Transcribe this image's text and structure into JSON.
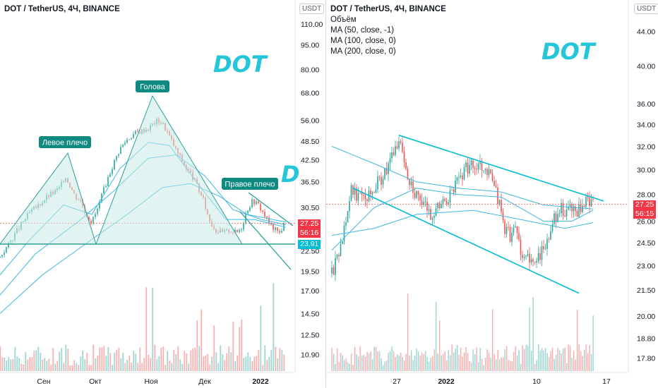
{
  "colors": {
    "up": "#26a69a",
    "down": "#ef5350",
    "pattern_line": "#2aa198",
    "pattern_fill": "#c9ebe5",
    "ma": "#3db8e0",
    "label_bg": "#0f8a80",
    "current_price_bg": "#f23645",
    "support_price_bg": "#00bcd4",
    "watermark": "#26c6da"
  },
  "left": {
    "legend": {
      "symbol": "DOT / TetherUS, 4Ч, BINANCE"
    },
    "currency_badge": "USDT",
    "watermark": "DOT",
    "watermark_partial": "D",
    "labels": {
      "left_shoulder": "Левое плечо",
      "head": "Голова",
      "right_shoulder": "Правое плечо"
    },
    "price_tags": {
      "current": "27.25",
      "countdown": "56:16",
      "support": "23.91"
    }
  },
  "right": {
    "legend": {
      "symbol": "DOT / TetherUS, 4Ч, BINANCE",
      "volume": "Объём",
      "ma1": "MA (50, close, -1)",
      "ma2": "MA (100, close, 0)",
      "ma3": "MA (200, close, 0)"
    },
    "currency_badge": "USDT",
    "watermark": "DOT",
    "price_tags": {
      "current": "27.25",
      "countdown": "56:15"
    }
  },
  "chart_data": [
    {
      "type": "candlestick",
      "symbol": "DOT / TetherUS",
      "interval": "4Ч",
      "exchange": "BINANCE",
      "y_ticks": [
        "110.00",
        "95.00",
        "80.00",
        "68.00",
        "56.00",
        "48.50",
        "42.50",
        "36.50",
        "30.50",
        "22.50",
        "19.50",
        "17.00",
        "14.50",
        "12.50",
        "10.90"
      ],
      "x_ticks": [
        "Сен",
        "Окт",
        "Ноя",
        "Дек",
        "2022"
      ],
      "ylim": [
        9.6,
        130
      ],
      "log_scale": true,
      "price_path": [
        [
          0,
          21.5
        ],
        [
          12,
          23.5
        ],
        [
          25,
          26
        ],
        [
          40,
          29
        ],
        [
          55,
          31
        ],
        [
          68,
          33
        ],
        [
          78,
          34
        ],
        [
          85,
          35
        ],
        [
          92,
          38
        ],
        [
          98,
          36
        ],
        [
          106,
          33
        ],
        [
          114,
          32
        ],
        [
          122,
          29
        ],
        [
          130,
          27.5
        ],
        [
          138,
          30
        ],
        [
          146,
          34
        ],
        [
          154,
          38
        ],
        [
          162,
          42
        ],
        [
          170,
          46
        ],
        [
          180,
          49
        ],
        [
          190,
          51
        ],
        [
          200,
          52
        ],
        [
          210,
          53
        ],
        [
          218,
          55
        ],
        [
          225,
          56
        ],
        [
          232,
          54
        ],
        [
          240,
          50
        ],
        [
          248,
          46
        ],
        [
          256,
          43
        ],
        [
          264,
          40
        ],
        [
          272,
          38
        ],
        [
          280,
          35
        ],
        [
          288,
          32
        ],
        [
          296,
          28
        ],
        [
          305,
          26
        ],
        [
          315,
          25.5
        ],
        [
          325,
          26
        ],
        [
          335,
          25.5
        ],
        [
          342,
          26.5
        ],
        [
          350,
          30
        ],
        [
          358,
          32
        ],
        [
          366,
          31
        ],
        [
          374,
          29
        ],
        [
          382,
          27
        ],
        [
          390,
          26
        ],
        [
          396,
          25.5
        ],
        [
          402,
          27
        ]
      ],
      "series": [
        {
          "name": "MA (50, close, -1)",
          "values": [
            [
              0,
              19
            ],
            [
              40,
              24
            ],
            [
              90,
              31
            ],
            [
              130,
              29
            ],
            [
              170,
              40
            ],
            [
              210,
              48
            ],
            [
              240,
              47
            ],
            [
              280,
              36
            ],
            [
              320,
              28
            ],
            [
              360,
              28
            ],
            [
              405,
              26.5
            ]
          ]
        },
        {
          "name": "MA (100, close, 0)",
          "values": [
            [
              0,
              16.5
            ],
            [
              50,
              22
            ],
            [
              110,
              27.5
            ],
            [
              160,
              34
            ],
            [
              210,
              43
            ],
            [
              250,
              44
            ],
            [
              290,
              38
            ],
            [
              330,
              30
            ],
            [
              370,
              28
            ],
            [
              405,
              27
            ]
          ]
        },
        {
          "name": "MA (200, close, 0)",
          "values": [
            [
              0,
              14.5
            ],
            [
              60,
              19
            ],
            [
              120,
              23.5
            ],
            [
              180,
              29
            ],
            [
              230,
              35
            ],
            [
              270,
              36
            ],
            [
              310,
              33
            ],
            [
              350,
              29
            ],
            [
              405,
              27.5
            ]
          ]
        }
      ],
      "annotations": [
        "Левое плечо",
        "Голова",
        "Правое плечо"
      ],
      "neckline": 23.91,
      "current_price": 27.25,
      "countdown": "56:16"
    },
    {
      "type": "candlestick",
      "symbol": "DOT / TetherUS",
      "interval": "4Ч",
      "exchange": "BINANCE",
      "y_ticks": [
        "44.00",
        "40.00",
        "36.00",
        "34.00",
        "32.00",
        "30.00",
        "28.00",
        "26.00",
        "24.50",
        "23.00",
        "21.50",
        "20.00",
        "18.80",
        "17.80"
      ],
      "x_ticks": [
        "27",
        "2022",
        "10",
        "17"
      ],
      "ylim": [
        17.1,
        48
      ],
      "log_scale": true,
      "price_path": [
        [
          0,
          22.5
        ],
        [
          8,
          23.5
        ],
        [
          15,
          25
        ],
        [
          22,
          27
        ],
        [
          28,
          28.5
        ],
        [
          35,
          28
        ],
        [
          42,
          28.5
        ],
        [
          50,
          28
        ],
        [
          58,
          28.5
        ],
        [
          66,
          29
        ],
        [
          74,
          29.5
        ],
        [
          82,
          30.5
        ],
        [
          88,
          31.5
        ],
        [
          95,
          32.5
        ],
        [
          102,
          31
        ],
        [
          108,
          29.5
        ],
        [
          115,
          28.5
        ],
        [
          122,
          27.5
        ],
        [
          130,
          27.2
        ],
        [
          140,
          26.5
        ],
        [
          150,
          27
        ],
        [
          160,
          27.5
        ],
        [
          170,
          28
        ],
        [
          180,
          29.5
        ],
        [
          190,
          30
        ],
        [
          200,
          30.5
        ],
        [
          210,
          30.5
        ],
        [
          220,
          30
        ],
        [
          230,
          29
        ],
        [
          238,
          27
        ],
        [
          245,
          25.5
        ],
        [
          252,
          25
        ],
        [
          258,
          25.5
        ],
        [
          265,
          24.5
        ],
        [
          272,
          23.5
        ],
        [
          278,
          23.5
        ],
        [
          284,
          22.8
        ],
        [
          290,
          23.5
        ],
        [
          298,
          24
        ],
        [
          306,
          24.5
        ],
        [
          314,
          26
        ],
        [
          322,
          27
        ],
        [
          330,
          26.5
        ],
        [
          338,
          27
        ],
        [
          346,
          26.5
        ],
        [
          355,
          27
        ],
        [
          362,
          27.5
        ],
        [
          370,
          27.25
        ]
      ],
      "series": [
        {
          "name": "MA (50, close, -1)",
          "values": [
            [
              0,
              24
            ],
            [
              60,
              27
            ],
            [
              120,
              28.5
            ],
            [
              180,
              28
            ],
            [
              240,
              27.8
            ],
            [
              300,
              26
            ],
            [
              340,
              26
            ],
            [
              370,
              26.8
            ]
          ]
        },
        {
          "name": "MA (100, close, 0)",
          "values": [
            [
              0,
              32
            ],
            [
              60,
              30.5
            ],
            [
              120,
              29
            ],
            [
              180,
              28.5
            ],
            [
              240,
              28.2
            ],
            [
              300,
              27.2
            ],
            [
              370,
              26.9
            ]
          ]
        },
        {
          "name": "MA (200, close, 0)",
          "values": [
            [
              0,
              25
            ],
            [
              60,
              25.5
            ],
            [
              120,
              26.5
            ],
            [
              200,
              26.8
            ],
            [
              280,
              26
            ],
            [
              330,
              25.5
            ],
            [
              370,
              25.9
            ]
          ]
        }
      ],
      "channel": {
        "upper": [
          [
            95,
            33
          ],
          [
            385,
            27.5
          ]
        ],
        "lower": [
          [
            30,
            28.5
          ],
          [
            350,
            21.3
          ]
        ]
      },
      "current_price": 27.25,
      "countdown": "56:15"
    }
  ]
}
